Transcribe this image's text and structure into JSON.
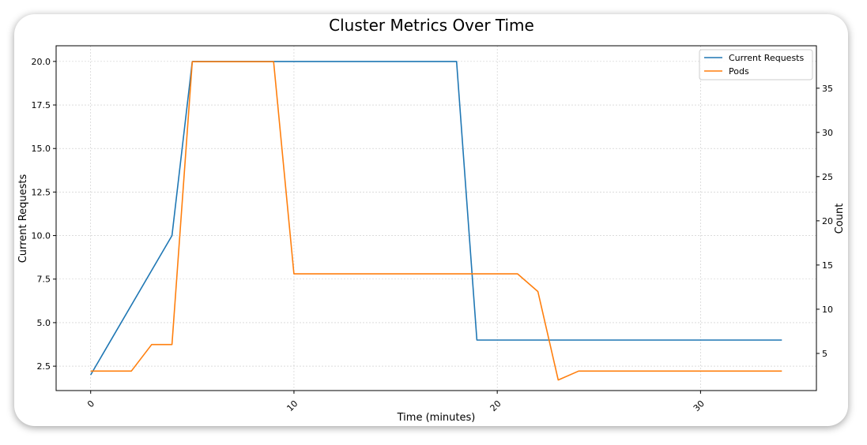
{
  "chart_data": {
    "type": "line",
    "title": "Cluster Metrics Over Time",
    "xlabel": "Time (minutes)",
    "ylabel": "Current Requests",
    "y2label": "Count",
    "xlim": [
      -1.7,
      35.7
    ],
    "ylim": [
      1.1,
      20.9
    ],
    "y2lim": [
      0.8,
      39.8
    ],
    "x_ticks": [
      0,
      10,
      20,
      30
    ],
    "y_ticks": [
      2.5,
      5.0,
      7.5,
      10.0,
      12.5,
      15.0,
      17.5,
      20.0
    ],
    "y2_ticks": [
      5,
      10,
      15,
      20,
      25,
      30,
      35
    ],
    "grid": true,
    "legend_position": "top-right",
    "series": [
      {
        "name": "Current Requests",
        "axis": "left",
        "color": "#1f77b4",
        "x": [
          0,
          4,
          5,
          18,
          19,
          34
        ],
        "y": [
          2,
          10,
          20,
          20,
          4,
          4
        ]
      },
      {
        "name": "Pods",
        "axis": "right",
        "color": "#ff7f0e",
        "x": [
          0,
          2,
          3,
          4,
          5,
          9,
          10,
          21,
          22,
          23,
          24,
          34
        ],
        "y": [
          3,
          3,
          6,
          6,
          38,
          38,
          14,
          14,
          12,
          2,
          3,
          3
        ]
      }
    ]
  }
}
